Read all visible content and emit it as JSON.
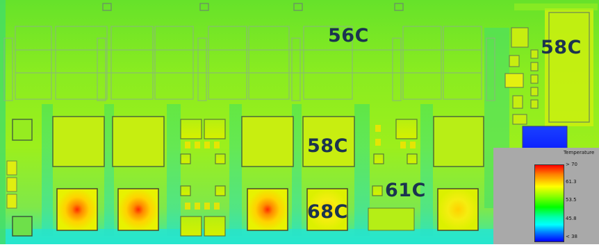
{
  "labels": {
    "top": "56C",
    "right": "58C",
    "middle": "58C",
    "hot_mid": "61C",
    "hot_main": "68C"
  },
  "legend": {
    "title": "Temperature",
    "ticks": [
      "> 70",
      "61.3",
      "53.5",
      "45.8",
      "< 38"
    ],
    "colors": {
      "max": "#ff0000",
      "high": "#ffff00",
      "mid": "#00ff00",
      "low": "#00ffff",
      "min": "#0000ff"
    }
  },
  "colors": {
    "background_field": "#7fe81c",
    "hot": "#ff3b00",
    "label": "#1b3350"
  }
}
